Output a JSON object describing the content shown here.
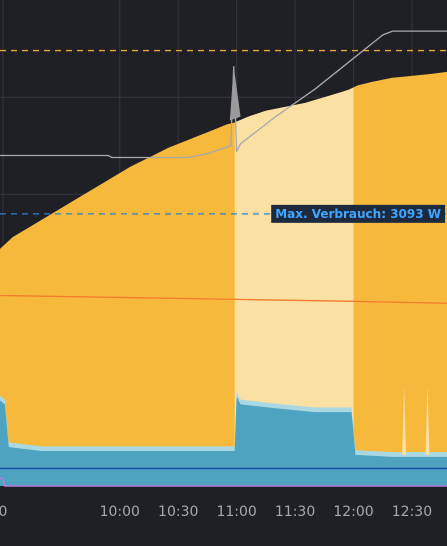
{
  "chart_data": {
    "type": "area",
    "x_tick_labels": [
      "0",
      "10:00",
      "10:30",
      "11:00",
      "11:30",
      "12:00",
      "12:30"
    ],
    "x_ticks_minutes": [
      540,
      600,
      630,
      660,
      690,
      720,
      750
    ],
    "x_range_minutes": [
      538.5,
      768
    ],
    "series": [
      {
        "color": "#f6b93b",
        "x": [
          538.5,
          545,
          555,
          565,
          575,
          585,
          595,
          605,
          615,
          625,
          635,
          645,
          655,
          659,
          666,
          675,
          685,
          695,
          705,
          715,
          718,
          722,
          730,
          740,
          750,
          760,
          768
        ],
        "y": [
          0.61,
          0.64,
          0.67,
          0.7,
          0.73,
          0.76,
          0.79,
          0.82,
          0.845,
          0.87,
          0.89,
          0.91,
          0.93,
          0.935,
          0.95,
          0.965,
          0.975,
          0.985,
          1.0,
          1.015,
          1.02,
          1.03,
          1.04,
          1.05,
          1.055,
          1.06,
          1.065
        ]
      },
      {
        "color": "#a9a9ab",
        "x": [
          538.5,
          594,
          596,
          635,
          645,
          657,
          658.5,
          660,
          662,
          680,
          700,
          720,
          735,
          740,
          768
        ],
        "y": [
          0.85,
          0.85,
          0.845,
          0.845,
          0.855,
          0.875,
          1.08,
          0.86,
          0.88,
          0.95,
          1.02,
          1.1,
          1.16,
          1.17,
          1.17
        ]
      },
      {
        "color": "#4ea3c0",
        "x": [
          538.5,
          541,
          543,
          560,
          580,
          600,
          620,
          630,
          640,
          655,
          659,
          660,
          662,
          680,
          700,
          719,
          721,
          740,
          760,
          768
        ],
        "y": [
          0.22,
          0.21,
          0.1,
          0.09,
          0.09,
          0.09,
          0.09,
          0.09,
          0.09,
          0.09,
          0.09,
          0.23,
          0.21,
          0.2,
          0.19,
          0.19,
          0.08,
          0.075,
          0.075,
          0.075
        ]
      },
      {
        "color": "#f27c2e",
        "x": [
          538.5,
          600,
          660,
          720,
          768
        ],
        "y": [
          0.49,
          0.485,
          0.48,
          0.475,
          0.47
        ]
      },
      {
        "color": "#1a4fa3",
        "x": [
          538.5,
          600,
          660,
          720,
          768
        ],
        "y": [
          0.045,
          0.045,
          0.045,
          0.045,
          0.045
        ]
      },
      {
        "color": "#b57de0",
        "x": [
          538.5,
          540,
          541,
          768
        ],
        "y": [
          0.02,
          0.02,
          0.0,
          0.0
        ]
      }
    ],
    "reference_lines": [
      {
        "y": 1.12,
        "color": "#e8a53a",
        "style": "dashed"
      },
      {
        "y": 0.7,
        "color": "#2d7fd1",
        "style": "dashed",
        "label": "Max. Verbrauch: 3093 W"
      }
    ],
    "highlight_ranges": [
      {
        "from": 659,
        "to": 720,
        "color": "#fbe0a4"
      }
    ],
    "grid": true,
    "ylim": [
      0,
      1.25
    ]
  }
}
